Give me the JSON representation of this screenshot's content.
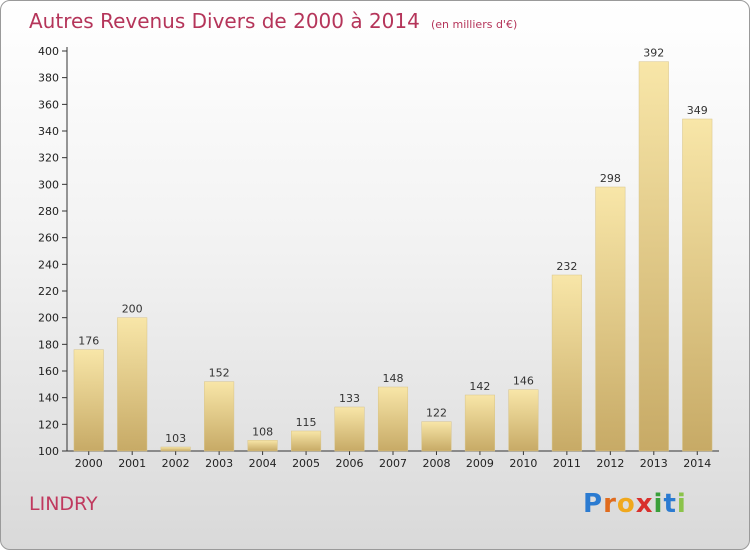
{
  "header": {
    "title": "Autres Revenus Divers de 2000 à 2014",
    "subtitle": "(en milliers d'€)"
  },
  "footer": {
    "place": "LINDRY",
    "logo_text": "Proxiti",
    "logo_letters": [
      {
        "ch": "P",
        "color": "#2b7bd1"
      },
      {
        "ch": "r",
        "color": "#e06b1d"
      },
      {
        "ch": "o",
        "color": "#f0a81d"
      },
      {
        "ch": "x",
        "color": "#d9302c"
      },
      {
        "ch": "i",
        "color": "#3a9f3a"
      },
      {
        "ch": "t",
        "color": "#2b7bd1"
      },
      {
        "ch": "i",
        "color": "#8bc34a"
      }
    ]
  },
  "chart_data": {
    "type": "bar",
    "title": "Autres Revenus Divers de 2000 à 2014",
    "subtitle": "(en milliers d'€)",
    "xlabel": "",
    "ylabel": "",
    "categories": [
      "2000",
      "2001",
      "2002",
      "2003",
      "2004",
      "2005",
      "2006",
      "2007",
      "2008",
      "2009",
      "2010",
      "2011",
      "2012",
      "2013",
      "2014"
    ],
    "values": [
      176,
      200,
      103,
      152,
      108,
      115,
      133,
      148,
      122,
      142,
      146,
      232,
      298,
      392,
      349
    ],
    "ylim": [
      100,
      400
    ],
    "yticks": [
      100,
      120,
      140,
      160,
      180,
      200,
      220,
      240,
      260,
      280,
      300,
      320,
      340,
      360,
      380,
      400
    ],
    "grid": false,
    "legend": "none",
    "bar_color_light": "#f7e3a3",
    "bar_color_dark": "#c9ae6a"
  }
}
